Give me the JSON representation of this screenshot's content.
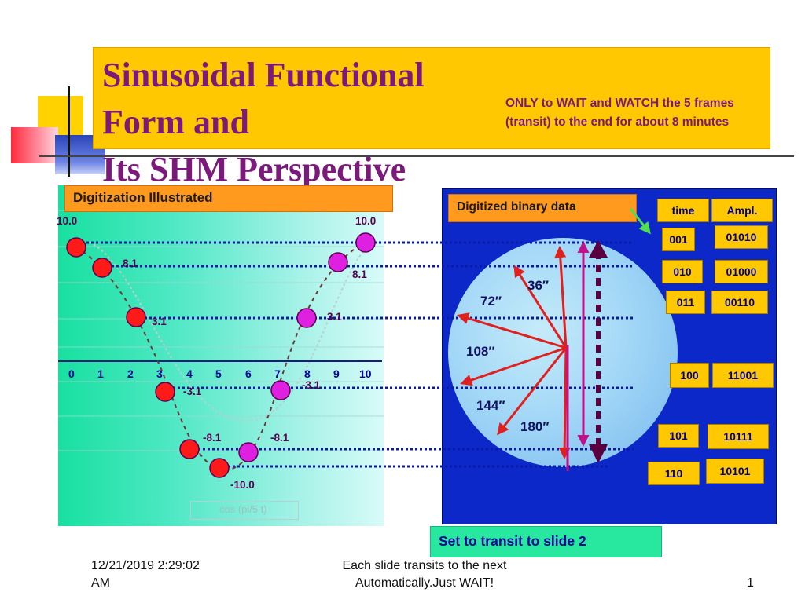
{
  "slide": {
    "title_line1": "Sinusoidal Functional Form and",
    "title_line2": "Its SHM Perspective",
    "note": "ONLY to WAIT and WATCH the 5 frames (transit) to the end for about 8 minutes"
  },
  "left_chart": {
    "label": "Digitization Illustrated",
    "legend": "cos (pi/5 t)",
    "axis_ticks": [
      "0",
      "1",
      "2",
      "3",
      "4",
      "5",
      "6",
      "7",
      "8",
      "9",
      "10"
    ],
    "value_labels": {
      "top_left": "10.0",
      "top_right": "10.0",
      "v81_left": "8.1",
      "v81_right": "8.1",
      "v31_left": "3.1",
      "v31_right": "3.1",
      "vn31_left": "-3.1",
      "vn31_right": "-3.1",
      "vn81_left": "-8.1",
      "vn81_right": "-8.1",
      "bottom": "-10.0"
    }
  },
  "right_panel": {
    "label": "Digitized binary data",
    "headers": {
      "time": "time",
      "ampl": "Ampl."
    },
    "rows": [
      {
        "time": "001",
        "ampl": "01010"
      },
      {
        "time": "010",
        "ampl": "01000"
      },
      {
        "time": "011",
        "ampl": "00110"
      },
      {
        "time": "100",
        "ampl": "11001"
      },
      {
        "time": "101",
        "ampl": "10111"
      },
      {
        "time": "110",
        "ampl": "10101"
      }
    ],
    "angles": [
      "36″",
      "72″",
      "108″",
      "144″",
      "180″"
    ]
  },
  "transit": {
    "label": "Set to transit to slide 2"
  },
  "footer": {
    "datetime_line1": "12/21/2019 2:29:02",
    "datetime_line2": "AM",
    "center_line1": "Each slide transits to the next",
    "center_line2": "Automatically.Just WAIT!",
    "page": "1"
  },
  "colors": {
    "title_bg": "#ffc800",
    "title_text": "#7b1a7b",
    "orange_label": "#ff9a1f",
    "panel_blue": "#0c28c8",
    "marker_red": "#ff1a1a",
    "marker_magenta": "#e020e0",
    "dotted_line": "#0a1aa8",
    "arrow_red": "#e0201e",
    "arrow_magenta": "#c0108a",
    "arrow_dark": "#5a0040",
    "transit_bg": "#28e8a0"
  }
}
